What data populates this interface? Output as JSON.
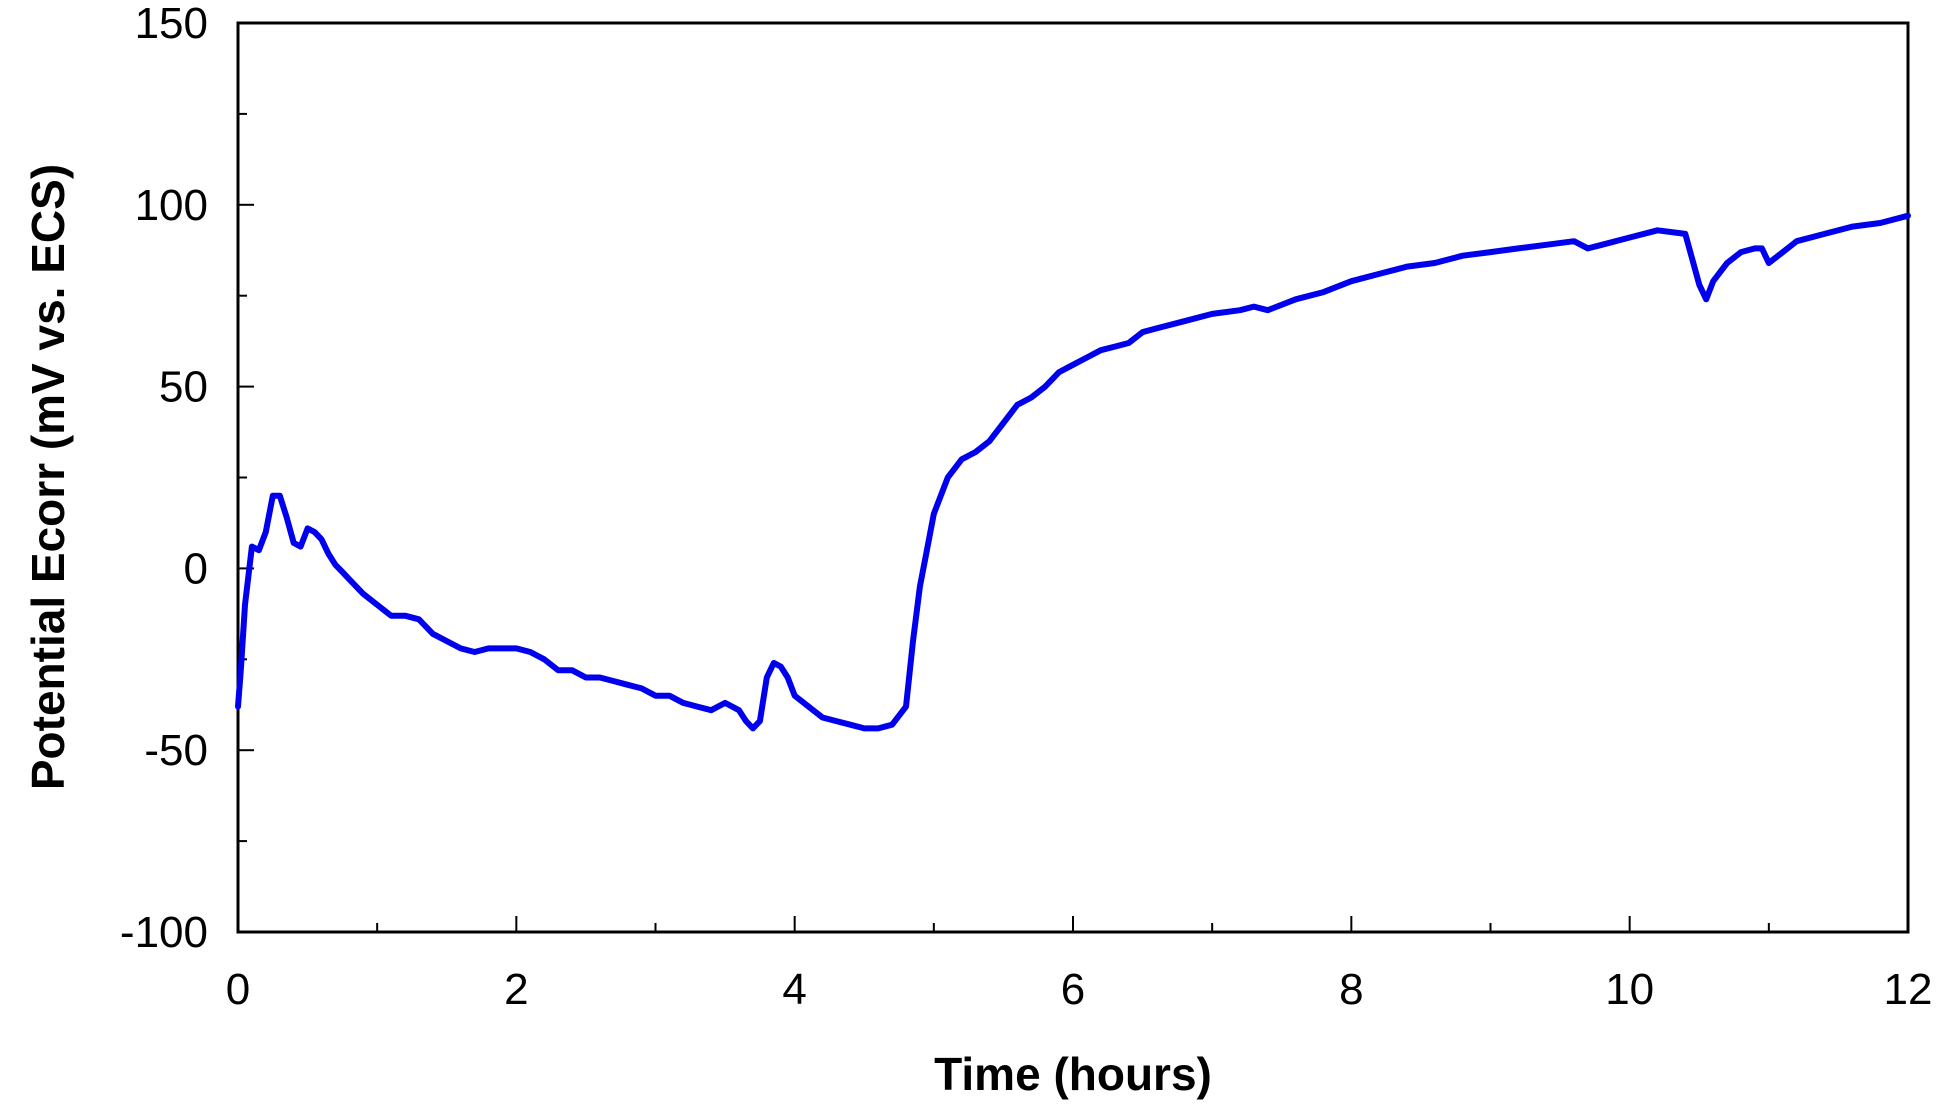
{
  "chart_data": {
    "type": "line",
    "title": "",
    "xlabel": "Time (hours)",
    "ylabel": "Potential Ecorr (mV vs. ECS)",
    "xlim": [
      0,
      12
    ],
    "ylim": [
      -100,
      150
    ],
    "x_major_ticks": [
      0,
      2,
      4,
      6,
      8,
      10,
      12
    ],
    "x_tick_labels": [
      "0",
      "2",
      "4",
      "6",
      "8",
      "10",
      "12"
    ],
    "y_major_ticks": [
      -100,
      -50,
      0,
      50,
      100,
      150
    ],
    "y_tick_labels": [
      "-100",
      "-50",
      "0",
      "50",
      "100",
      "150"
    ],
    "grid": false,
    "legend": "none",
    "line_color": "#0000ee",
    "series": [
      {
        "x": [
          0.0,
          0.02,
          0.05,
          0.1,
          0.15,
          0.2,
          0.25,
          0.3,
          0.35,
          0.4,
          0.45,
          0.5,
          0.55,
          0.6,
          0.65,
          0.7,
          0.75,
          0.8,
          0.9,
          1.0,
          1.1,
          1.2,
          1.3,
          1.4,
          1.5,
          1.6,
          1.7,
          1.8,
          1.9,
          2.0,
          2.1,
          2.2,
          2.3,
          2.4,
          2.5,
          2.6,
          2.7,
          2.8,
          2.9,
          3.0,
          3.1,
          3.2,
          3.3,
          3.4,
          3.5,
          3.6,
          3.65,
          3.7,
          3.75,
          3.8,
          3.85,
          3.9,
          3.95,
          4.0,
          4.1,
          4.2,
          4.3,
          4.4,
          4.5,
          4.6,
          4.7,
          4.8,
          4.85,
          4.9,
          4.95,
          5.0,
          5.05,
          5.1,
          5.2,
          5.3,
          5.4,
          5.5,
          5.6,
          5.7,
          5.8,
          5.9,
          6.0,
          6.1,
          6.2,
          6.3,
          6.4,
          6.5,
          6.6,
          6.8,
          7.0,
          7.2,
          7.3,
          7.4,
          7.6,
          7.8,
          8.0,
          8.2,
          8.4,
          8.6,
          8.8,
          9.0,
          9.2,
          9.4,
          9.6,
          9.7,
          9.8,
          10.0,
          10.2,
          10.4,
          10.45,
          10.5,
          10.55,
          10.6,
          10.7,
          10.8,
          10.9,
          10.95,
          11.0,
          11.1,
          11.2,
          11.4,
          11.6,
          11.8,
          12.0
        ],
        "values": [
          -38,
          -28,
          -10,
          6,
          5,
          10,
          20,
          20,
          14,
          7,
          6,
          11,
          10,
          8,
          4,
          1,
          -1,
          -3,
          -7,
          -10,
          -13,
          -13,
          -14,
          -18,
          -20,
          -22,
          -23,
          -22,
          -22,
          -22,
          -23,
          -25,
          -28,
          -28,
          -30,
          -30,
          -31,
          -32,
          -33,
          -35,
          -35,
          -37,
          -38,
          -39,
          -37,
          -39,
          -42,
          -44,
          -42,
          -30,
          -26,
          -27,
          -30,
          -35,
          -38,
          -41,
          -42,
          -43,
          -44,
          -44,
          -43,
          -38,
          -20,
          -5,
          5,
          15,
          20,
          25,
          30,
          32,
          35,
          40,
          45,
          47,
          50,
          54,
          56,
          58,
          60,
          61,
          62,
          65,
          66,
          68,
          70,
          71,
          72,
          71,
          74,
          76,
          79,
          81,
          83,
          84,
          86,
          87,
          88,
          89,
          90,
          88,
          89,
          91,
          93,
          92,
          85,
          78,
          74,
          79,
          84,
          87,
          88,
          88,
          84,
          87,
          90,
          92,
          94,
          95,
          97
        ]
      }
    ]
  }
}
